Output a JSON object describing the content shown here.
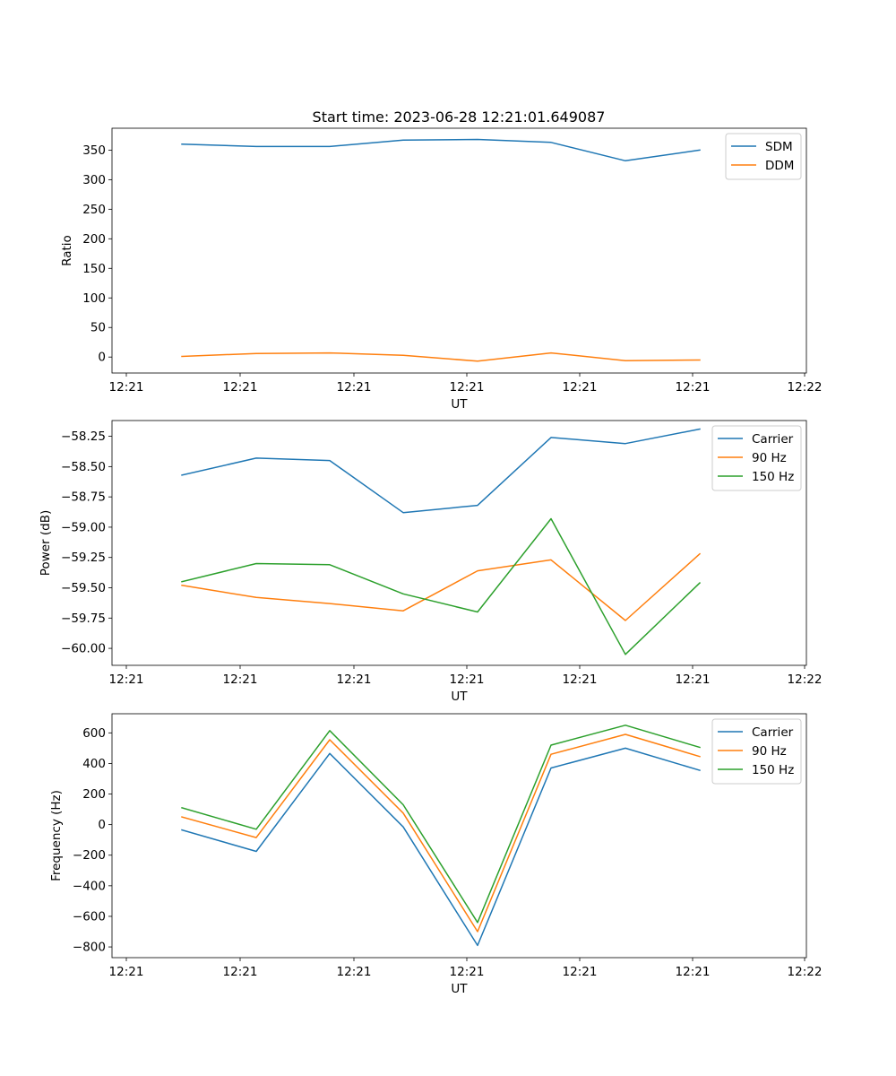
{
  "figure": {
    "title": "Start time: 2023-06-28 12:21:01.649087"
  },
  "chart_data": [
    {
      "type": "line",
      "title": "Start time: 2023-06-28 12:21:01.649087",
      "xlabel": "UT",
      "ylabel": "Ratio",
      "x_tick_labels": [
        "12:21",
        "12:21",
        "12:21",
        "12:21",
        "12:21",
        "12:21",
        "12:22"
      ],
      "y_ticks": [
        0,
        50,
        100,
        150,
        200,
        250,
        300,
        350
      ],
      "y_tick_labels": [
        "0",
        "50",
        "100",
        "150",
        "200",
        "250",
        "300",
        "350"
      ],
      "ylim": [
        -27,
        387
      ],
      "grid": false,
      "legend": "upper right",
      "series": [
        {
          "name": "SDM",
          "color": "#1f77b4",
          "values": [
            360,
            356,
            356,
            367,
            368,
            363,
            332,
            350
          ]
        },
        {
          "name": "DDM",
          "color": "#ff7f0e",
          "values": [
            1,
            6,
            7,
            3,
            -7,
            7,
            -6,
            -5
          ]
        }
      ]
    },
    {
      "type": "line",
      "title": "",
      "xlabel": "UT",
      "ylabel": "Power (dB)",
      "x_tick_labels": [
        "12:21",
        "12:21",
        "12:21",
        "12:21",
        "12:21",
        "12:21",
        "12:22"
      ],
      "y_ticks": [
        -60.0,
        -59.75,
        -59.5,
        -59.25,
        -59.0,
        -58.75,
        -58.5,
        -58.25
      ],
      "y_tick_labels": [
        "−60.00",
        "−59.75",
        "−59.50",
        "−59.25",
        "−59.00",
        "−58.75",
        "−58.50",
        "−58.25"
      ],
      "ylim": [
        -60.14,
        -58.12
      ],
      "grid": false,
      "legend": "upper right",
      "series": [
        {
          "name": "Carrier",
          "color": "#1f77b4",
          "values": [
            -58.57,
            -58.43,
            -58.45,
            -58.88,
            -58.82,
            -58.26,
            -58.31,
            -58.19
          ]
        },
        {
          "name": "90 Hz",
          "color": "#ff7f0e",
          "values": [
            -59.48,
            -59.58,
            -59.63,
            -59.69,
            -59.36,
            -59.27,
            -59.77,
            -59.22
          ]
        },
        {
          "name": "150 Hz",
          "color": "#2ca02c",
          "values": [
            -59.45,
            -59.3,
            -59.31,
            -59.55,
            -59.7,
            -58.93,
            -60.05,
            -59.46
          ]
        }
      ]
    },
    {
      "type": "line",
      "title": "",
      "xlabel": "UT",
      "ylabel": "Frequency (Hz)",
      "x_tick_labels": [
        "12:21",
        "12:21",
        "12:21",
        "12:21",
        "12:21",
        "12:21",
        "12:22"
      ],
      "y_ticks": [
        -800,
        -600,
        -400,
        -200,
        0,
        200,
        400,
        600
      ],
      "y_tick_labels": [
        "−800",
        "−600",
        "−400",
        "−200",
        "0",
        "200",
        "400",
        "600"
      ],
      "ylim": [
        -870,
        725
      ],
      "grid": false,
      "legend": "upper right",
      "series": [
        {
          "name": "Carrier",
          "color": "#1f77b4",
          "values": [
            -35,
            -175,
            465,
            -15,
            -790,
            370,
            500,
            355
          ]
        },
        {
          "name": "90 Hz",
          "color": "#ff7f0e",
          "values": [
            50,
            -85,
            555,
            75,
            -700,
            460,
            590,
            445
          ]
        },
        {
          "name": "150 Hz",
          "color": "#2ca02c",
          "values": [
            110,
            -30,
            615,
            130,
            -640,
            520,
            650,
            505
          ]
        }
      ]
    }
  ]
}
